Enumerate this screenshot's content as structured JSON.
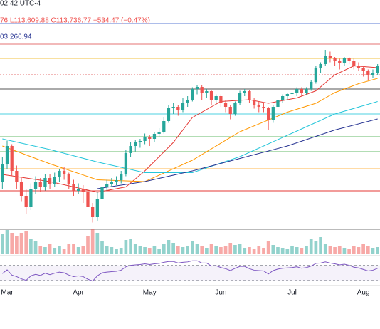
{
  "chart_data": {
    "type": "candlestick",
    "annotations": [
      "02:42 UTC-4",
      "76 L113,609.88 C113,736.77 −534.47 (−0.47%)",
      "03,266.94"
    ],
    "categories": [
      null,
      "Mar",
      null,
      null,
      null,
      null,
      null,
      null,
      null,
      null,
      null,
      null,
      null,
      null,
      null,
      null,
      "Apr",
      null,
      null,
      null,
      null,
      null,
      null,
      null,
      null,
      null,
      null,
      null,
      null,
      null,
      null,
      "May",
      null,
      null,
      null,
      null,
      null,
      null,
      null,
      null,
      null,
      null,
      null,
      null,
      null,
      null,
      "Jun",
      null,
      null,
      null,
      null,
      null,
      null,
      null,
      null,
      null,
      null,
      null,
      null,
      null,
      null,
      "Jul",
      null,
      null,
      null,
      null,
      null,
      null,
      null,
      null,
      null,
      null,
      null,
      null,
      null,
      null,
      "Aug",
      null,
      null,
      null
    ],
    "up_color": "#26a69a",
    "down_color": "#ef5350",
    "ylim": [
      66000,
      137000
    ],
    "ohlc": [
      [
        86000,
        93000,
        84000,
        91000
      ],
      [
        91000,
        97500,
        89500,
        96000
      ],
      [
        96000,
        96500,
        87500,
        89000
      ],
      [
        89000,
        90500,
        84000,
        86000
      ],
      [
        86000,
        87000,
        80500,
        82000
      ],
      [
        82000,
        84000,
        77000,
        79000
      ],
      [
        79000,
        85500,
        78000,
        84000
      ],
      [
        84000,
        87500,
        82500,
        86000
      ],
      [
        86000,
        87000,
        83000,
        84600
      ],
      [
        84600,
        88000,
        83500,
        87000
      ],
      [
        87000,
        88000,
        84000,
        85400
      ],
      [
        85400,
        88500,
        84500,
        87400
      ],
      [
        87400,
        89500,
        86000,
        89000
      ],
      [
        89000,
        90000,
        86500,
        88000
      ],
      [
        88000,
        88500,
        84000,
        85400
      ],
      [
        85400,
        86500,
        82000,
        83400
      ],
      [
        83400,
        85500,
        82500,
        84000
      ],
      [
        84000,
        85000,
        80000,
        83000
      ],
      [
        83000,
        83500,
        76500,
        79000
      ],
      [
        79000,
        80000,
        74500,
        76000
      ],
      [
        76000,
        83000,
        75000,
        81000
      ],
      [
        81000,
        85500,
        80000,
        84600
      ],
      [
        84600,
        86500,
        83500,
        85400
      ],
      [
        85400,
        87000,
        84500,
        86000
      ],
      [
        86000,
        87500,
        85000,
        86400
      ],
      [
        86400,
        89000,
        85500,
        88000
      ],
      [
        88000,
        95000,
        87500,
        94000
      ],
      [
        94000,
        97000,
        93000,
        96000
      ],
      [
        96000,
        97800,
        94500,
        97000
      ],
      [
        97000,
        98000,
        95500,
        97400
      ],
      [
        97400,
        99500,
        96500,
        98600
      ],
      [
        98600,
        99000,
        96000,
        98000
      ],
      [
        98000,
        100000,
        97000,
        99400
      ],
      [
        99400,
        101000,
        98500,
        100000
      ],
      [
        100000,
        104000,
        99500,
        103000
      ],
      [
        103000,
        107500,
        102500,
        106600
      ],
      [
        106600,
        108000,
        105000,
        107000
      ],
      [
        107000,
        107500,
        104500,
        106000
      ],
      [
        106000,
        109500,
        105500,
        108000
      ],
      [
        108000,
        110000,
        107000,
        109000
      ],
      [
        109000,
        112500,
        108500,
        112000
      ],
      [
        112000,
        113000,
        110500,
        112600
      ],
      [
        112600,
        113000,
        109000,
        111000
      ],
      [
        111000,
        112000,
        109500,
        111400
      ],
      [
        111400,
        111800,
        107500,
        109000
      ],
      [
        109000,
        110500,
        108000,
        110000
      ],
      [
        110000,
        110500,
        107000,
        108000
      ],
      [
        108000,
        109000,
        105500,
        107000
      ],
      [
        107000,
        107500,
        103500,
        105000
      ],
      [
        105000,
        108500,
        104500,
        108000
      ],
      [
        108000,
        111500,
        107500,
        111000
      ],
      [
        111000,
        112000,
        110000,
        111400
      ],
      [
        111400,
        111800,
        108000,
        109000
      ],
      [
        109000,
        109500,
        106500,
        107400
      ],
      [
        107400,
        108500,
        105500,
        107000
      ],
      [
        107000,
        108000,
        105500,
        106600
      ],
      [
        106600,
        107000,
        100500,
        103400
      ],
      [
        103400,
        107500,
        102500,
        107000
      ],
      [
        107000,
        109500,
        106000,
        109000
      ],
      [
        109000,
        110500,
        108000,
        110000
      ],
      [
        110000,
        111000,
        109000,
        110600
      ],
      [
        110600,
        111500,
        109500,
        111000
      ],
      [
        111000,
        112500,
        110000,
        112000
      ],
      [
        112000,
        112500,
        110000,
        111000
      ],
      [
        111000,
        112500,
        110500,
        112000
      ],
      [
        112000,
        114500,
        111500,
        114000
      ],
      [
        114000,
        118500,
        113500,
        118000
      ],
      [
        118000,
        119500,
        116500,
        119000
      ],
      [
        119000,
        123000,
        118500,
        121400
      ],
      [
        121400,
        122500,
        119500,
        120600
      ],
      [
        120600,
        121000,
        118500,
        120000
      ],
      [
        120000,
        120500,
        117500,
        119400
      ],
      [
        119400,
        121000,
        118500,
        120600
      ],
      [
        120600,
        121000,
        119000,
        120000
      ],
      [
        120000,
        120500,
        117500,
        118600
      ],
      [
        118600,
        119500,
        117000,
        118000
      ],
      [
        118000,
        118500,
        115500,
        117000
      ],
      [
        117000,
        117500,
        114500,
        116000
      ],
      [
        116000,
        117500,
        115000,
        116600
      ],
      [
        116600,
        119000,
        116000,
        118600
      ]
    ],
    "moving_averages": [
      {
        "color": "#e53935",
        "x": [
          0,
          10,
          20,
          26,
          30,
          36,
          40,
          46,
          52,
          56,
          62,
          66,
          70,
          74,
          79
        ],
        "values": [
          88000,
          86000,
          83000,
          84500,
          89000,
          97000,
          104000,
          108500,
          109000,
          108000,
          109500,
          111500,
          116000,
          118500,
          118000
        ]
      },
      {
        "color": "#ff9800",
        "x": [
          0,
          10,
          20,
          30,
          40,
          50,
          60,
          66,
          70,
          75,
          79
        ],
        "values": [
          96000,
          91000,
          86500,
          86000,
          92000,
          100000,
          105500,
          108000,
          111000,
          113500,
          115000
        ]
      },
      {
        "color": "#26c6da",
        "x": [
          0,
          10,
          20,
          30,
          40,
          50,
          60,
          70,
          79
        ],
        "values": [
          98000,
          95000,
          91500,
          88500,
          88500,
          93000,
          99000,
          105000,
          108500
        ]
      },
      {
        "color": "#283593",
        "x": [
          20,
          30,
          40,
          50,
          60,
          70,
          79
        ],
        "values": [
          84000,
          86000,
          89000,
          92500,
          96000,
          100500,
          103600
        ]
      }
    ],
    "levels": [
      {
        "value": 130400,
        "color": "#5b7bd5"
      },
      {
        "value": 124600,
        "color": "#e57373"
      },
      {
        "value": 120600,
        "color": "#f0c040"
      },
      {
        "value": 116000,
        "color": "#e57373",
        "dashed": true
      },
      {
        "value": 112000,
        "color": "#555555"
      },
      {
        "value": 105000,
        "color": "#4dd0e1"
      },
      {
        "value": 98600,
        "color": "#66bb6a"
      },
      {
        "value": 94400,
        "color": "#66bb6a"
      },
      {
        "value": 89600,
        "color": "#ffb74d"
      },
      {
        "value": 83400,
        "color": "#e53935"
      },
      {
        "value": 72600,
        "color": "#777777"
      }
    ],
    "volume": [
      28,
      34,
      30,
      25,
      30,
      33,
      22,
      18,
      12,
      10,
      14,
      9,
      11,
      8,
      15,
      14,
      10,
      12,
      26,
      35,
      30,
      18,
      12,
      10,
      8,
      9,
      20,
      22,
      14,
      11,
      10,
      9,
      12,
      8,
      14,
      20,
      16,
      12,
      10,
      11,
      18,
      15,
      12,
      9,
      14,
      11,
      10,
      12,
      16,
      13,
      14,
      9,
      10,
      8,
      11,
      9,
      18,
      13,
      10,
      9,
      8,
      11,
      10,
      9,
      12,
      22,
      18,
      24,
      14,
      11,
      10,
      12,
      9,
      8,
      11,
      10,
      15,
      12,
      9,
      10
    ],
    "volume_ylim": [
      0,
      40
    ],
    "rsi": [
      48,
      58,
      44,
      40,
      34,
      30,
      42,
      46,
      43,
      49,
      45,
      49,
      52,
      50,
      44,
      40,
      42,
      40,
      33,
      28,
      42,
      50,
      52,
      53,
      54,
      57,
      66,
      70,
      71,
      72,
      74,
      72,
      74,
      75,
      78,
      80,
      80,
      76,
      78,
      79,
      82,
      82,
      76,
      76,
      68,
      69,
      64,
      61,
      56,
      62,
      67,
      67,
      61,
      57,
      56,
      55,
      47,
      56,
      60,
      62,
      63,
      64,
      66,
      62,
      64,
      68,
      75,
      76,
      79,
      76,
      74,
      71,
      73,
      70,
      65,
      63,
      59,
      55,
      57,
      62
    ],
    "rsi_color": "#7e57c2",
    "rsi_ylim": [
      20,
      90
    ],
    "rsi_bands": [
      30,
      70
    ]
  }
}
